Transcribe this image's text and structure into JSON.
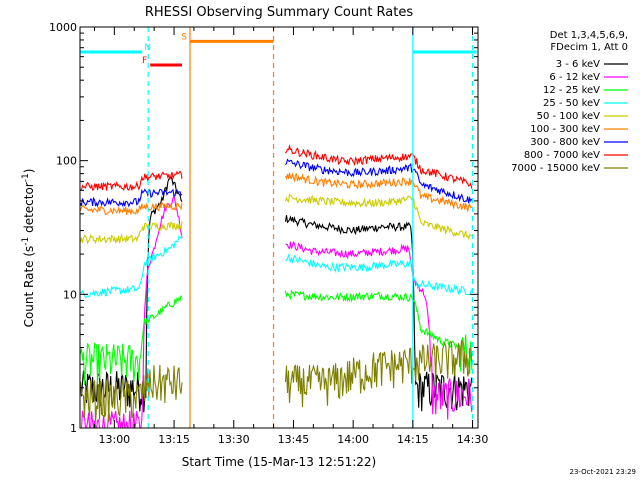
{
  "chart_data": {
    "type": "line",
    "title": "RHESSI Observing Summary Count Rates",
    "xlabel": "Start Time (15-Mar-13 12:51:22)",
    "ylabel_main": "Count Rate (s",
    "ylabel_sup1": "-1",
    "ylabel_mid": " detector",
    "ylabel_sup2": "-1",
    "ylabel_end": ")",
    "y_scale": "log",
    "ylim": [
      1,
      1000
    ],
    "xlim_minutes": [
      771.37,
      871.37
    ],
    "x_ticks": [
      {
        "label": "13:00",
        "minutes": 780
      },
      {
        "label": "13:15",
        "minutes": 795
      },
      {
        "label": "13:30",
        "minutes": 810
      },
      {
        "label": "13:45",
        "minutes": 825
      },
      {
        "label": "14:00",
        "minutes": 840
      },
      {
        "label": "14:15",
        "minutes": 855
      },
      {
        "label": "14:30",
        "minutes": 870
      }
    ],
    "y_ticks": [
      {
        "label": "1",
        "value": 1
      },
      {
        "label": "10",
        "value": 10
      },
      {
        "label": "100",
        "value": 100
      },
      {
        "label": "1000",
        "value": 1000
      }
    ],
    "legend_header": [
      "Det 1,3,4,5,6,9,",
      "FDecim 1, Att 0"
    ],
    "legend_position": "right",
    "timestamp": "23-Oct-2021 23:29",
    "flags": [
      {
        "label": "N",
        "color": "#00ffff",
        "start": 771.37,
        "end": 787.0,
        "level": 650
      },
      {
        "label": "N",
        "color": "#00ffff",
        "start": 855.0,
        "end": 871.0,
        "level": 650
      },
      {
        "label": "F",
        "color": "#ff0000",
        "start": 789.0,
        "end": 797.0,
        "level": 520
      },
      {
        "label": "S",
        "color": "#ff7f00",
        "start": 799.0,
        "end": 820.0,
        "level": 780
      }
    ],
    "markers": [
      {
        "minutes": 788.5,
        "color": "#00ffff",
        "style": "dashed"
      },
      {
        "minutes": 799.0,
        "color": "#ff7f00",
        "style": "solid"
      },
      {
        "minutes": 820.0,
        "color": "#ff7f00",
        "style": "dashed"
      },
      {
        "minutes": 855.0,
        "color": "#00ffff",
        "style": "solid"
      },
      {
        "minutes": 870.0,
        "color": "#00ffff",
        "style": "dashed"
      }
    ],
    "segments": [
      [
        771.5,
        797.0
      ],
      [
        823.0,
        869.8
      ]
    ],
    "series": [
      {
        "name": "3 - 6 keV",
        "color": "#000000",
        "seg1": [
          [
            771.5,
            2.0
          ],
          [
            788.0,
            2.0
          ],
          [
            789.0,
            38.0
          ],
          [
            792.0,
            50.0
          ],
          [
            794.0,
            75.0
          ],
          [
            797.0,
            48.0
          ]
        ],
        "seg2": [
          [
            823.0,
            37.0
          ],
          [
            830.0,
            33.0
          ],
          [
            840.0,
            30.0
          ],
          [
            847.0,
            32.0
          ],
          [
            854.5,
            32.0
          ],
          [
            855.5,
            2.0
          ],
          [
            869.8,
            2.0
          ]
        ]
      },
      {
        "name": "6 - 12 keV",
        "color": "#ff00ff",
        "seg1": [
          [
            771.5,
            1.0
          ],
          [
            787.0,
            1.0
          ],
          [
            788.5,
            16.0
          ],
          [
            790.0,
            22.0
          ],
          [
            793.0,
            45.0
          ],
          [
            795.0,
            52.0
          ],
          [
            797.0,
            27.0
          ]
        ],
        "seg2": [
          [
            823.0,
            24.0
          ],
          [
            830.0,
            21.0
          ],
          [
            840.0,
            20.0
          ],
          [
            847.0,
            21.0
          ],
          [
            854.0,
            22.0
          ],
          [
            855.0,
            13.0
          ],
          [
            858.0,
            10.0
          ],
          [
            860.0,
            1.7
          ],
          [
            869.8,
            1.8
          ]
        ]
      },
      {
        "name": "12 - 25 keV",
        "color": "#00ff00",
        "seg1": [
          [
            771.5,
            3.2
          ],
          [
            786.5,
            3.2
          ],
          [
            787.5,
            6.2
          ],
          [
            790.0,
            6.8
          ],
          [
            793.0,
            8.0
          ],
          [
            797.0,
            9.5
          ]
        ],
        "seg2": [
          [
            823.0,
            10.0
          ],
          [
            835.0,
            9.5
          ],
          [
            847.0,
            9.8
          ],
          [
            855.0,
            9.5
          ],
          [
            857.0,
            5.5
          ],
          [
            862.0,
            4.5
          ],
          [
            869.8,
            3.7
          ]
        ]
      },
      {
        "name": "25 - 50 keV",
        "color": "#00ffff",
        "seg1": [
          [
            771.5,
            10.0
          ],
          [
            778.0,
            10.5
          ],
          [
            786.5,
            11.0
          ],
          [
            787.5,
            17.0
          ],
          [
            790.0,
            19.0
          ],
          [
            794.0,
            22.0
          ],
          [
            797.0,
            27.0
          ]
        ],
        "seg2": [
          [
            823.0,
            19.0
          ],
          [
            833.0,
            16.0
          ],
          [
            842.0,
            16.0
          ],
          [
            847.0,
            16.5
          ],
          [
            854.5,
            17.0
          ],
          [
            855.5,
            12.0
          ],
          [
            869.8,
            10.5
          ]
        ]
      },
      {
        "name": "50 - 100 keV",
        "color": "#cccc00",
        "seg1": [
          [
            771.5,
            26.0
          ],
          [
            786.0,
            26.0
          ],
          [
            787.0,
            32.0
          ],
          [
            797.0,
            33.0
          ]
        ],
        "seg2": [
          [
            823.0,
            53.0
          ],
          [
            835.0,
            49.0
          ],
          [
            843.0,
            48.0
          ],
          [
            849.0,
            49.0
          ],
          [
            855.0,
            52.0
          ],
          [
            857.0,
            34.0
          ],
          [
            869.8,
            27.0
          ]
        ]
      },
      {
        "name": "100 - 300 keV",
        "color": "#ff7f00",
        "seg1": [
          [
            771.5,
            43.0
          ],
          [
            786.0,
            42.0
          ],
          [
            787.0,
            45.0
          ],
          [
            797.0,
            46.0
          ]
        ],
        "seg2": [
          [
            823.0,
            78.0
          ],
          [
            832.0,
            69.0
          ],
          [
            840.0,
            66.0
          ],
          [
            848.0,
            68.0
          ],
          [
            855.0,
            71.0
          ],
          [
            857.0,
            54.0
          ],
          [
            869.8,
            44.0
          ]
        ]
      },
      {
        "name": "300 - 800 keV",
        "color": "#0000ff",
        "seg1": [
          [
            771.5,
            49.0
          ],
          [
            786.0,
            49.0
          ],
          [
            787.0,
            57.0
          ],
          [
            797.0,
            58.0
          ]
        ],
        "seg2": [
          [
            823.0,
            98.0
          ],
          [
            832.0,
            86.0
          ],
          [
            840.0,
            81.0
          ],
          [
            848.0,
            84.0
          ],
          [
            855.0,
            89.0
          ],
          [
            857.0,
            66.0
          ],
          [
            869.8,
            50.0
          ]
        ]
      },
      {
        "name": "800 - 7000 keV",
        "color": "#ff0000",
        "seg1": [
          [
            771.5,
            64.0
          ],
          [
            786.0,
            64.0
          ],
          [
            787.0,
            75.0
          ],
          [
            797.0,
            78.0
          ]
        ],
        "seg2": [
          [
            823.0,
            122.0
          ],
          [
            830.0,
            110.0
          ],
          [
            838.0,
            98.0
          ],
          [
            847.0,
            104.0
          ],
          [
            855.0,
            108.0
          ],
          [
            857.0,
            86.0
          ],
          [
            869.8,
            66.0
          ]
        ]
      },
      {
        "name": "7000 - 15000 keV",
        "color": "#808000",
        "seg1": [
          [
            771.5,
            1.7
          ],
          [
            786.0,
            1.7
          ],
          [
            789.0,
            2.2
          ],
          [
            792.0,
            2.2
          ],
          [
            797.0,
            2.2
          ]
        ],
        "seg2": [
          [
            823.0,
            2.2
          ],
          [
            834.0,
            2.2
          ],
          [
            845.0,
            2.8
          ],
          [
            855.0,
            3.1
          ],
          [
            860.0,
            3.2
          ],
          [
            869.8,
            3.5
          ]
        ]
      }
    ]
  }
}
